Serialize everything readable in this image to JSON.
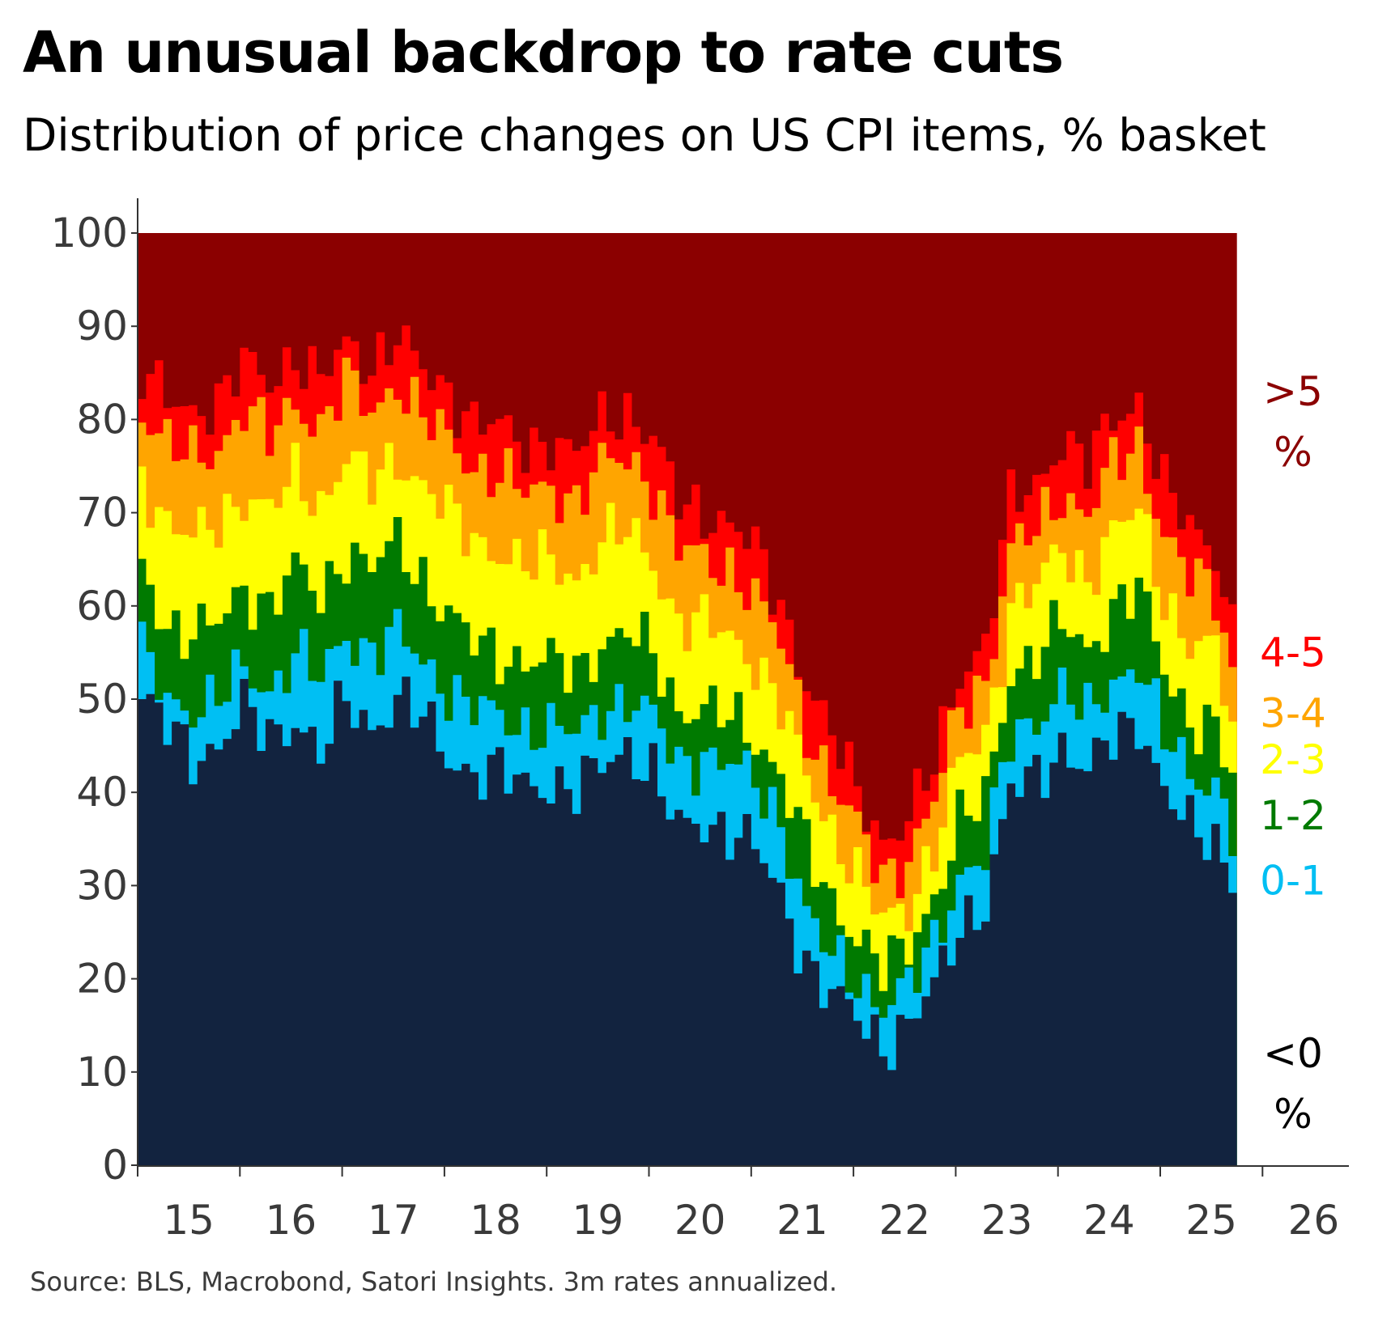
{
  "title": "An unusual backdrop to rate cuts",
  "subtitle": "Distribution of price changes on US CPI items, % basket",
  "source": "Source: BLS, Macrobond, Satori Insights. 3m rates annualized.",
  "chart_data": {
    "type": "area",
    "stacked": true,
    "ylim": [
      0,
      100
    ],
    "yticks": [
      0,
      10,
      20,
      30,
      40,
      50,
      60,
      70,
      80,
      90,
      100
    ],
    "xticks": [
      "15",
      "16",
      "17",
      "18",
      "19",
      "20",
      "21",
      "22",
      "23",
      "24",
      "25",
      "26"
    ],
    "grid": false,
    "legend": "right-inline",
    "x_start": "2015-01",
    "x_end": "2025-09",
    "anchors_note": "cumulative upper edges of each band, sampled quarterly",
    "anchor_dates": [
      "2015-01",
      "2015-04",
      "2015-07",
      "2015-10",
      "2016-01",
      "2016-04",
      "2016-07",
      "2016-10",
      "2017-01",
      "2017-04",
      "2017-07",
      "2017-10",
      "2018-01",
      "2018-04",
      "2018-07",
      "2018-10",
      "2019-01",
      "2019-04",
      "2019-07",
      "2019-10",
      "2020-01",
      "2020-04",
      "2020-07",
      "2020-10",
      "2021-01",
      "2021-04",
      "2021-07",
      "2021-10",
      "2022-01",
      "2022-04",
      "2022-07",
      "2022-10",
      "2023-01",
      "2023-04",
      "2023-07",
      "2023-10",
      "2024-01",
      "2024-04",
      "2024-07",
      "2024-10",
      "2025-01",
      "2025-04",
      "2025-07",
      "2025-09"
    ],
    "series": [
      {
        "name": "<0 %",
        "color": "#12233f",
        "cumulative": [
          50,
          47,
          44,
          45,
          49,
          46,
          48,
          44,
          50,
          47,
          50,
          48,
          44,
          42,
          42,
          41,
          41,
          40,
          43,
          45,
          42,
          36,
          37,
          36,
          34,
          29,
          22,
          18,
          16,
          13,
          15,
          19,
          26,
          28,
          40,
          42,
          45,
          42,
          46,
          48,
          40,
          36,
          35,
          31
        ]
      },
      {
        "name": "0-1",
        "color": "#00bff3",
        "cumulative": [
          55,
          50,
          49,
          50,
          53,
          51,
          55,
          52,
          57,
          55,
          57,
          54,
          51,
          49,
          48,
          47,
          47,
          46,
          49,
          50,
          48,
          43,
          44,
          43,
          41,
          37,
          27,
          22,
          20,
          17,
          19,
          24,
          31,
          33,
          46,
          48,
          51,
          48,
          52,
          54,
          46,
          42,
          41,
          36
        ]
      },
      {
        "name": "1-2",
        "color": "#007a00",
        "cumulative": [
          64,
          58,
          57,
          58,
          62,
          60,
          64,
          61,
          66,
          64,
          67,
          63,
          59,
          56,
          55,
          54,
          54,
          53,
          56,
          57,
          55,
          49,
          49,
          48,
          46,
          42,
          34,
          28,
          25,
          21,
          23,
          29,
          37,
          39,
          53,
          55,
          58,
          55,
          60,
          62,
          53,
          48,
          47,
          41
        ]
      },
      {
        "name": "2-3",
        "color": "#ffff00",
        "cumulative": [
          74,
          69,
          67,
          69,
          72,
          70,
          74,
          71,
          76,
          73,
          76,
          73,
          70,
          67,
          66,
          64,
          65,
          63,
          67,
          68,
          65,
          58,
          58,
          57,
          54,
          49,
          42,
          36,
          31,
          26,
          28,
          34,
          43,
          46,
          60,
          62,
          66,
          63,
          68,
          70,
          61,
          56,
          55,
          47
        ]
      },
      {
        "name": "3-4",
        "color": "#ffa500",
        "cumulative": [
          81,
          77,
          76,
          77,
          81,
          78,
          82,
          79,
          84,
          81,
          84,
          80,
          78,
          75,
          74,
          72,
          73,
          71,
          75,
          76,
          73,
          66,
          65,
          64,
          61,
          56,
          47,
          41,
          36,
          31,
          33,
          39,
          49,
          52,
          66,
          68,
          72,
          70,
          75,
          77,
          68,
          63,
          61,
          53
        ]
      },
      {
        "name": "4-5",
        "color": "#ff0000",
        "cumulative": [
          85,
          82,
          81,
          82,
          86,
          84,
          87,
          84,
          88,
          86,
          89,
          85,
          83,
          80,
          79,
          77,
          78,
          76,
          80,
          81,
          78,
          71,
          70,
          69,
          66,
          60,
          52,
          46,
          40,
          35,
          37,
          43,
          53,
          56,
          71,
          73,
          78,
          75,
          80,
          82,
          73,
          68,
          66,
          58
        ]
      },
      {
        "name": ">5 %",
        "color": "#8b0000",
        "cumulative": [
          100,
          100,
          100,
          100,
          100,
          100,
          100,
          100,
          100,
          100,
          100,
          100,
          100,
          100,
          100,
          100,
          100,
          100,
          100,
          100,
          100,
          100,
          100,
          100,
          100,
          100,
          100,
          100,
          100,
          100,
          100,
          100,
          100,
          100,
          100,
          100,
          100,
          100,
          100,
          100,
          100,
          100,
          100,
          100
        ]
      }
    ],
    "labels": [
      {
        "lines": [
          ">5",
          "%"
        ],
        "color": "#8b0000",
        "y": 83
      },
      {
        "lines": [
          "4-5"
        ],
        "color": "#ff0000",
        "y": 55
      },
      {
        "lines": [
          "3-4"
        ],
        "color": "#ffa500",
        "y": 48.5
      },
      {
        "lines": [
          "2-3"
        ],
        "color": "#ffff00",
        "y": 43.5
      },
      {
        "lines": [
          "1-2"
        ],
        "color": "#007a00",
        "y": 37.5
      },
      {
        "lines": [
          "0-1"
        ],
        "color": "#00bff3",
        "y": 30.5
      },
      {
        "lines": [
          "<0",
          "%"
        ],
        "color": "#000000",
        "y": 12
      }
    ]
  }
}
